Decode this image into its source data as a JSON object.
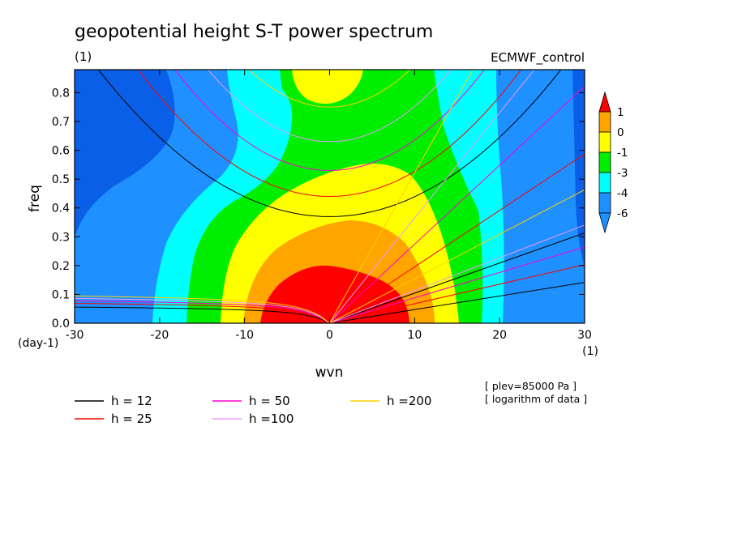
{
  "header": {
    "title": "geopotential height S-T power spectrum",
    "units_left": "(1)",
    "source": "ECMWF_control"
  },
  "notes": {
    "plev": "[ plev=85000 Pa ]",
    "log": "[ logarithm of data ]"
  },
  "chart_data": {
    "type": "heatmap",
    "title": "geopotential height S-T power spectrum",
    "xlabel": "wvn",
    "ylabel": "freq",
    "x_units": "(1)",
    "y_units": "(day-1)",
    "xlim": [
      -30,
      30
    ],
    "ylim": [
      0,
      0.88
    ],
    "x_ticks": [
      "-30",
      "-20",
      "-10",
      "0",
      "10",
      "20",
      "30"
    ],
    "y_ticks": [
      "0.0",
      "0.1",
      "0.2",
      "0.3",
      "0.4",
      "0.5",
      "0.6",
      "0.7",
      "0.8"
    ],
    "colorbar": {
      "labels": [
        "1",
        "0",
        "-1",
        "-3",
        "-4",
        "-6"
      ],
      "colors": [
        "#ff0000",
        "#ffa500",
        "#ffff00",
        "#00ee00",
        "#00ffff",
        "#1e90ff",
        "#0a5fe8"
      ]
    },
    "dispersion_curves": [
      {
        "label": "h = 12",
        "color": "#000000"
      },
      {
        "label": "h = 25",
        "color": "#ff0000"
      },
      {
        "label": "h = 50",
        "color": "#ff00d0"
      },
      {
        "label": "h =100",
        "color": "#e89bff"
      },
      {
        "label": "h =200",
        "color": "#ffd000"
      }
    ]
  }
}
